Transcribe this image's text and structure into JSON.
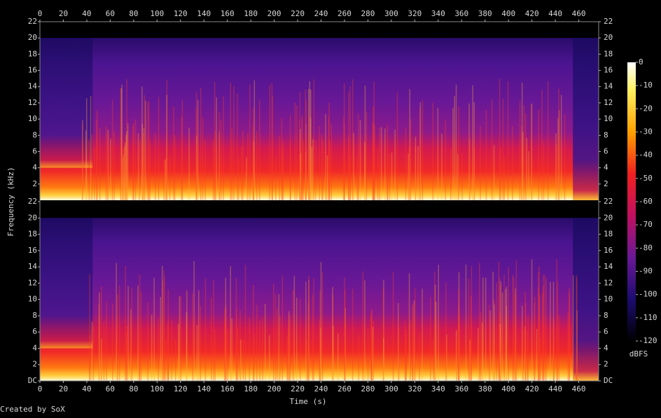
{
  "chart_data": {
    "type": "spectrogram",
    "xlabel": "Time (s)",
    "ylabel": "Frequency (kHz)",
    "credit": "Created by SoX",
    "xlim": [
      0,
      477
    ],
    "xticks": [
      0,
      20,
      40,
      60,
      80,
      100,
      120,
      140,
      160,
      180,
      200,
      220,
      240,
      260,
      280,
      300,
      320,
      340,
      360,
      380,
      400,
      420,
      440,
      460
    ],
    "channels": [
      {
        "ylim": [
          0,
          22
        ],
        "yticks": [
          2,
          4,
          6,
          8,
          10,
          12,
          14,
          16,
          18,
          20,
          22
        ]
      },
      {
        "ylim": [
          0,
          22
        ],
        "yticks": [
          {
            "value": 0,
            "label": "DC"
          },
          2,
          4,
          6,
          8,
          10,
          12,
          14,
          16,
          18,
          20,
          22
        ]
      }
    ],
    "colorbar": {
      "label": "dBFS",
      "lim": [
        -120,
        0
      ],
      "ticks": [
        0,
        -10,
        -20,
        -30,
        -40,
        -50,
        -60,
        -70,
        -80,
        -90,
        -100,
        -110,
        -120
      ]
    }
  }
}
